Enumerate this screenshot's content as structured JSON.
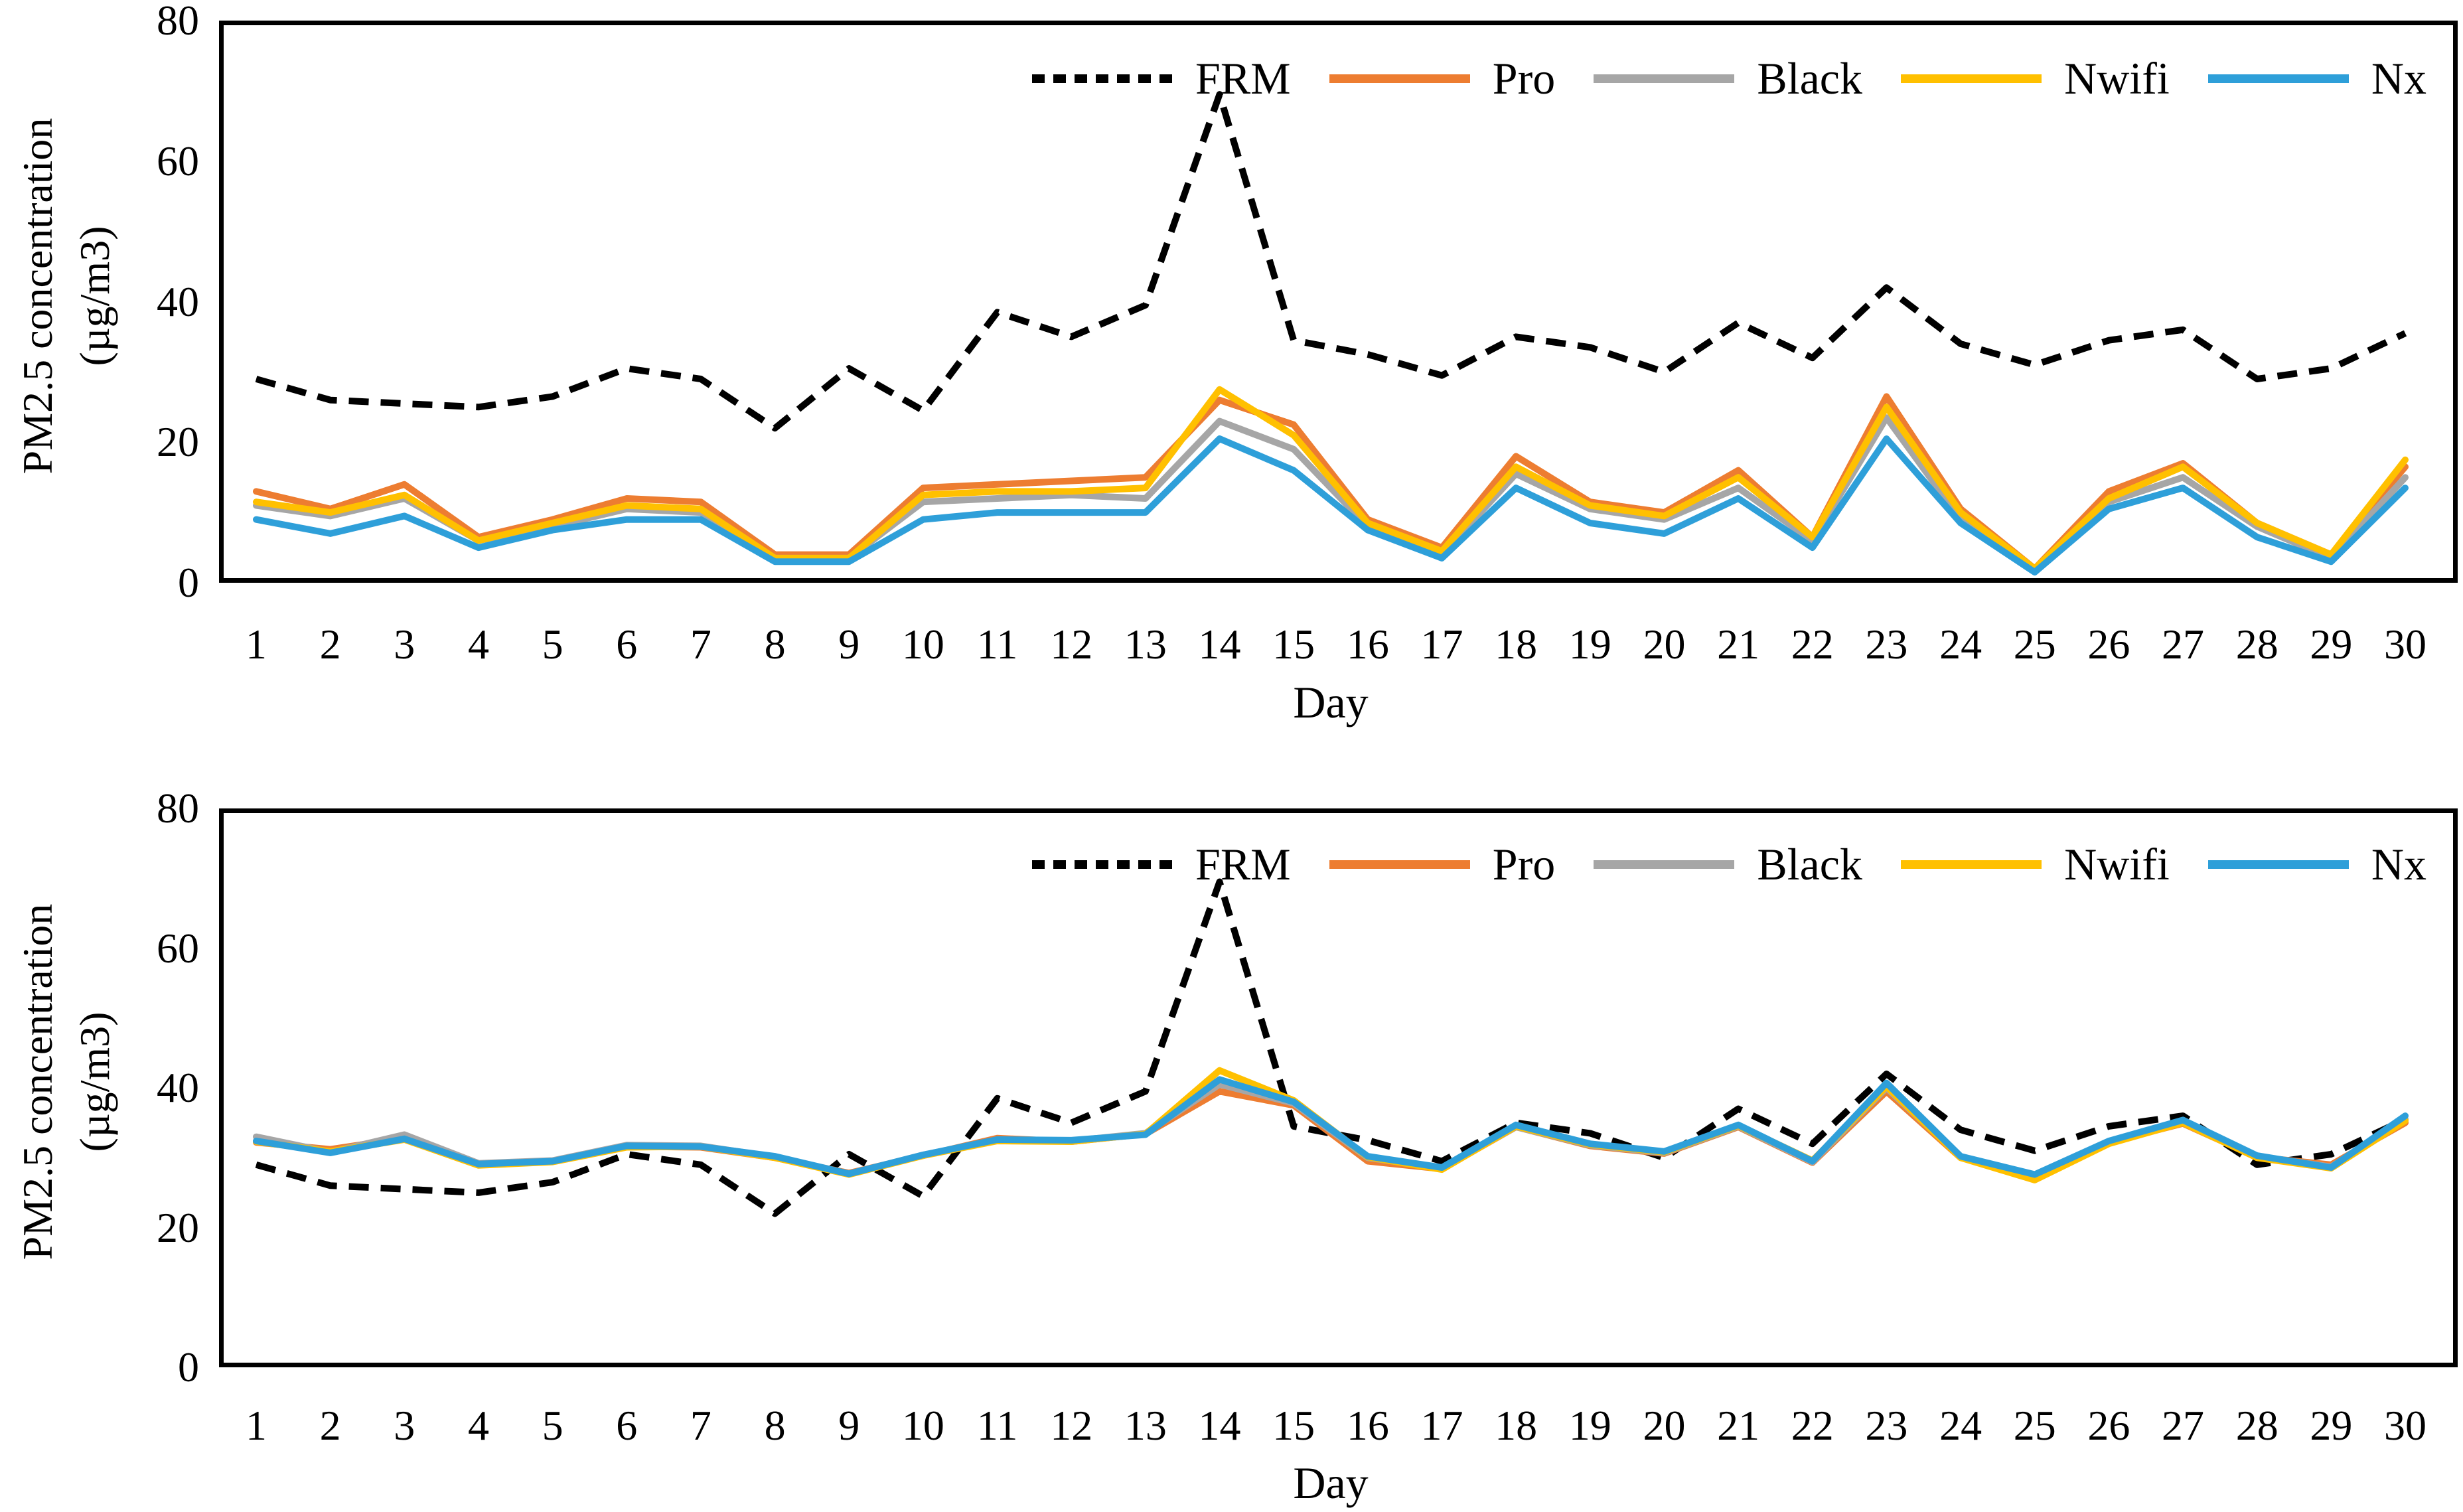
{
  "figure": {
    "description": "Two stacked line charts comparing FRM PM2.5 measurements with four low-cost sensors (raw on top, corrected on bottom) over a 30-day period",
    "accent_colors": {
      "frm": "#000000",
      "pro": "#ED7D31",
      "black": "#A6A6A6",
      "nwifi": "#FFC000",
      "nx": "#2E9FD9"
    }
  },
  "chart_data": [
    {
      "type": "line",
      "panel": "top-raw",
      "xlabel": "Day",
      "ylabel_line1": "PM2.5 concentration",
      "ylabel_line2": "(µg/m3)",
      "ylim": [
        0,
        80
      ],
      "yticks": [
        0,
        20,
        40,
        60,
        80
      ],
      "grid": false,
      "legend_position": "top-inside",
      "x": [
        1,
        2,
        3,
        4,
        5,
        6,
        7,
        8,
        9,
        10,
        11,
        12,
        13,
        14,
        15,
        16,
        17,
        18,
        19,
        20,
        21,
        22,
        23,
        24,
        25,
        26,
        27,
        28,
        29,
        30
      ],
      "series": [
        {
          "name": "FRM",
          "color": "#000000",
          "style": "dashed",
          "values": [
            29,
            26,
            25.5,
            25,
            26.5,
            30.5,
            29,
            22,
            30.5,
            24.5,
            38.5,
            35,
            39.5,
            69.5,
            34.5,
            32.5,
            29.5,
            35,
            33.5,
            30,
            37,
            32,
            42,
            34,
            31,
            34.5,
            36,
            29,
            30.5,
            35.5
          ]
        },
        {
          "name": "Pro",
          "color": "#ED7D31",
          "style": "solid",
          "values": [
            13,
            10.5,
            14,
            6.5,
            9,
            12,
            11.5,
            4,
            4,
            13.5,
            14,
            14.5,
            15,
            26,
            22.5,
            9,
            5,
            18,
            11.5,
            10,
            16,
            6.5,
            26.5,
            10.5,
            2,
            13,
            17,
            8.5,
            4,
            16.5
          ]
        },
        {
          "name": "Black",
          "color": "#A6A6A6",
          "style": "solid",
          "values": [
            11,
            9.5,
            12,
            6,
            8,
            10.5,
            10,
            3.5,
            3.5,
            11.5,
            12,
            12.5,
            12,
            23,
            19,
            8,
            4,
            15.5,
            10.5,
            9,
            13.5,
            6,
            23.5,
            9,
            1.8,
            11.5,
            15,
            8,
            3.5,
            15
          ]
        },
        {
          "name": "Nwifi",
          "color": "#FFC000",
          "style": "solid",
          "values": [
            11.5,
            10,
            12.5,
            6,
            8.5,
            11,
            10.5,
            3.5,
            3.5,
            12.5,
            13,
            13,
            13.5,
            27.5,
            21,
            8.5,
            4.5,
            16.5,
            11,
            9.5,
            15,
            6.5,
            25,
            10,
            2,
            12,
            16.5,
            8.5,
            4,
            17.5
          ]
        },
        {
          "name": "Nx",
          "color": "#2E9FD9",
          "style": "solid",
          "values": [
            9,
            7,
            9.5,
            5,
            7.5,
            9,
            9,
            3,
            3,
            9,
            10,
            10,
            10,
            20.5,
            16,
            7.5,
            3.5,
            13.5,
            8.5,
            7,
            12,
            5,
            20.5,
            8.5,
            1.5,
            10.5,
            13.5,
            6.5,
            3,
            13.5
          ]
        }
      ]
    },
    {
      "type": "line",
      "panel": "bottom-corrected",
      "xlabel": "Day",
      "ylabel_line1": "PM2.5 concentration",
      "ylabel_line2": "(µg/m3)",
      "ylim": [
        0,
        80
      ],
      "yticks": [
        0,
        20,
        40,
        60,
        80
      ],
      "grid": false,
      "legend_position": "top-inside",
      "x": [
        1,
        2,
        3,
        4,
        5,
        6,
        7,
        8,
        9,
        10,
        11,
        12,
        13,
        14,
        15,
        16,
        17,
        18,
        19,
        20,
        21,
        22,
        23,
        24,
        25,
        26,
        27,
        28,
        29,
        30
      ],
      "series": [
        {
          "name": "FRM",
          "color": "#000000",
          "style": "dashed",
          "values": [
            29,
            26,
            25.5,
            25,
            26.5,
            30.5,
            29,
            22,
            30.5,
            24.5,
            38.5,
            35,
            39.5,
            69.5,
            34.5,
            32.5,
            29.5,
            35,
            33.5,
            30,
            37,
            32,
            42,
            34,
            31,
            34.5,
            36,
            29,
            30.5,
            35.5
          ]
        },
        {
          "name": "Pro",
          "color": "#ED7D31",
          "style": "solid",
          "values": [
            32.2,
            31.2,
            32.8,
            29,
            29.5,
            31.6,
            31.5,
            30,
            27.8,
            30.3,
            32.8,
            32.3,
            33.4,
            39.5,
            37.5,
            29.5,
            28.4,
            34.4,
            31.7,
            30.6,
            34.4,
            29.3,
            39.5,
            30,
            27.5,
            32.2,
            34.9,
            30.1,
            29,
            35
          ]
        },
        {
          "name": "Black",
          "color": "#A6A6A6",
          "style": "solid",
          "values": [
            33,
            30.8,
            33.3,
            29.2,
            29.6,
            31.8,
            31.7,
            30.1,
            27.7,
            30.4,
            32.5,
            32.4,
            33.5,
            40.5,
            37.8,
            30,
            28.5,
            34.4,
            31.8,
            30.7,
            34.5,
            29.4,
            40,
            30.1,
            27.5,
            32.3,
            35.1,
            30.2,
            28.7,
            35.5
          ]
        },
        {
          "name": "Nwifi",
          "color": "#FFC000",
          "style": "solid",
          "values": [
            32.3,
            30.9,
            32.6,
            28.9,
            29.4,
            31.5,
            31.6,
            30,
            27.6,
            30.3,
            32.4,
            32.3,
            33.4,
            42.5,
            38.2,
            30.1,
            28.3,
            34.5,
            31.9,
            30.8,
            34.6,
            29.6,
            40.2,
            30,
            26.8,
            32,
            35,
            30,
            28.5,
            35.3
          ]
        },
        {
          "name": "Nx",
          "color": "#2E9FD9",
          "style": "solid",
          "values": [
            32.4,
            30.7,
            32.7,
            29.1,
            29.5,
            31.7,
            31.6,
            30.2,
            27.7,
            30.4,
            32.6,
            32.5,
            33.3,
            41.2,
            38,
            30.2,
            28.6,
            34.7,
            32,
            30.9,
            34.7,
            29.5,
            40.7,
            30.2,
            27.6,
            32.4,
            35.4,
            30.3,
            28.6,
            36
          ]
        }
      ]
    }
  ]
}
